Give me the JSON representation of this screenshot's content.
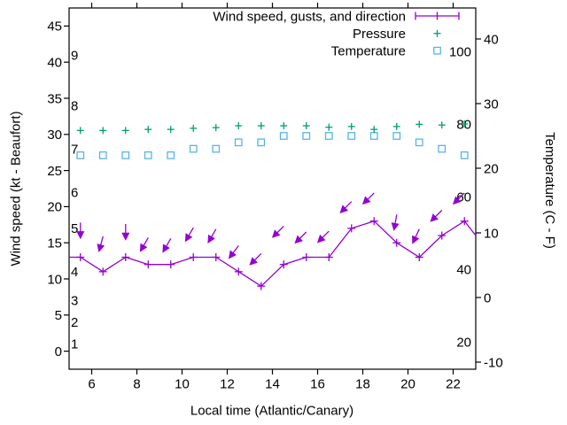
{
  "chart_data": {
    "type": "line",
    "title": "",
    "xlabel": "Local time (Atlantic/Canary)",
    "ylabel": "Wind speed (kt - Beaufort)",
    "y2label": "Temperature (C - F)",
    "x_range": [
      5,
      23
    ],
    "y_range": [
      -2.5,
      47.5
    ],
    "grid": false,
    "x_ticks": [
      6,
      8,
      10,
      12,
      14,
      16,
      18,
      20,
      22
    ],
    "y_ticks": [
      0,
      5,
      10,
      15,
      20,
      25,
      30,
      35,
      40,
      45
    ],
    "y2_ticks": [
      -10,
      0,
      10,
      20,
      30,
      40
    ],
    "beaufort_labels": [
      {
        "label": "1",
        "kt": 1
      },
      {
        "label": "2",
        "kt": 4
      },
      {
        "label": "3",
        "kt": 7
      },
      {
        "label": "4",
        "kt": 11
      },
      {
        "label": "5",
        "kt": 17
      },
      {
        "label": "6",
        "kt": 22
      },
      {
        "label": "7",
        "kt": 28
      },
      {
        "label": "8",
        "kt": 34
      },
      {
        "label": "9",
        "kt": 41
      }
    ],
    "right_inner_scale_labels": [
      100,
      80,
      60,
      40,
      20
    ],
    "legend": {
      "position": "top-right",
      "entries": [
        {
          "label": "Wind speed, gusts, and direction",
          "series": "wind"
        },
        {
          "label": "Pressure",
          "series": "pressure"
        },
        {
          "label": "Temperature",
          "series": "temperature"
        }
      ]
    },
    "hours": [
      5.5,
      6.5,
      7.5,
      8.5,
      9.5,
      10.5,
      11.5,
      12.5,
      13.5,
      14.5,
      15.5,
      16.5,
      17.5,
      18.5,
      19.5,
      20.5,
      21.5,
      22.5
    ],
    "series": [
      {
        "name": "wind_speed",
        "marker": "plus",
        "color": "#9400d3",
        "unit": "kt",
        "values": [
          13,
          11,
          13,
          12,
          12,
          13,
          13,
          11,
          9,
          12,
          13,
          13,
          17,
          18,
          15,
          13,
          16,
          18
        ],
        "edge_start": {
          "hour": 5.0,
          "value": 13
        },
        "edge_end": {
          "hour": 23.0,
          "value": 16
        }
      },
      {
        "name": "gust_direction_arrows",
        "marker": "arrow",
        "color": "#9400d3",
        "unit": "kt",
        "gust_values": [
          17.8,
          15.9,
          17.6,
          15.7,
          15.6,
          17.1,
          16.9,
          14.6,
          13.5,
          17.3,
          16.5,
          16.6,
          20.7,
          21.9,
          18.9,
          16.9,
          19.5,
          21.9
        ],
        "angle_from_vertical_deg": [
          0,
          15,
          0,
          30,
          30,
          30,
          30,
          37,
          45,
          45,
          45,
          45,
          45,
          45,
          10,
          25,
          45,
          45
        ]
      },
      {
        "name": "pressure",
        "marker": "plus",
        "color": "#009e73",
        "scale": "right_inner",
        "values": [
          78.2,
          78.2,
          78.2,
          78.5,
          78.5,
          78.8,
          79.0,
          79.5,
          79.5,
          79.5,
          79.5,
          79.1,
          79.3,
          78.5,
          79.3,
          79.9,
          79.7,
          80.0
        ]
      },
      {
        "name": "temperature",
        "marker": "open-square",
        "color": "#56b4e9",
        "unit": "C",
        "scale": "y2",
        "values": [
          22,
          22,
          22,
          22,
          22,
          23,
          23,
          24,
          24,
          25,
          25,
          25,
          25,
          25,
          25,
          24,
          23,
          22
        ]
      }
    ],
    "colors": {
      "foreground": "#000000",
      "background": "#ffffff",
      "wind": "#9400d3",
      "pressure": "#009e73",
      "temperature": "#56b4e9"
    }
  }
}
